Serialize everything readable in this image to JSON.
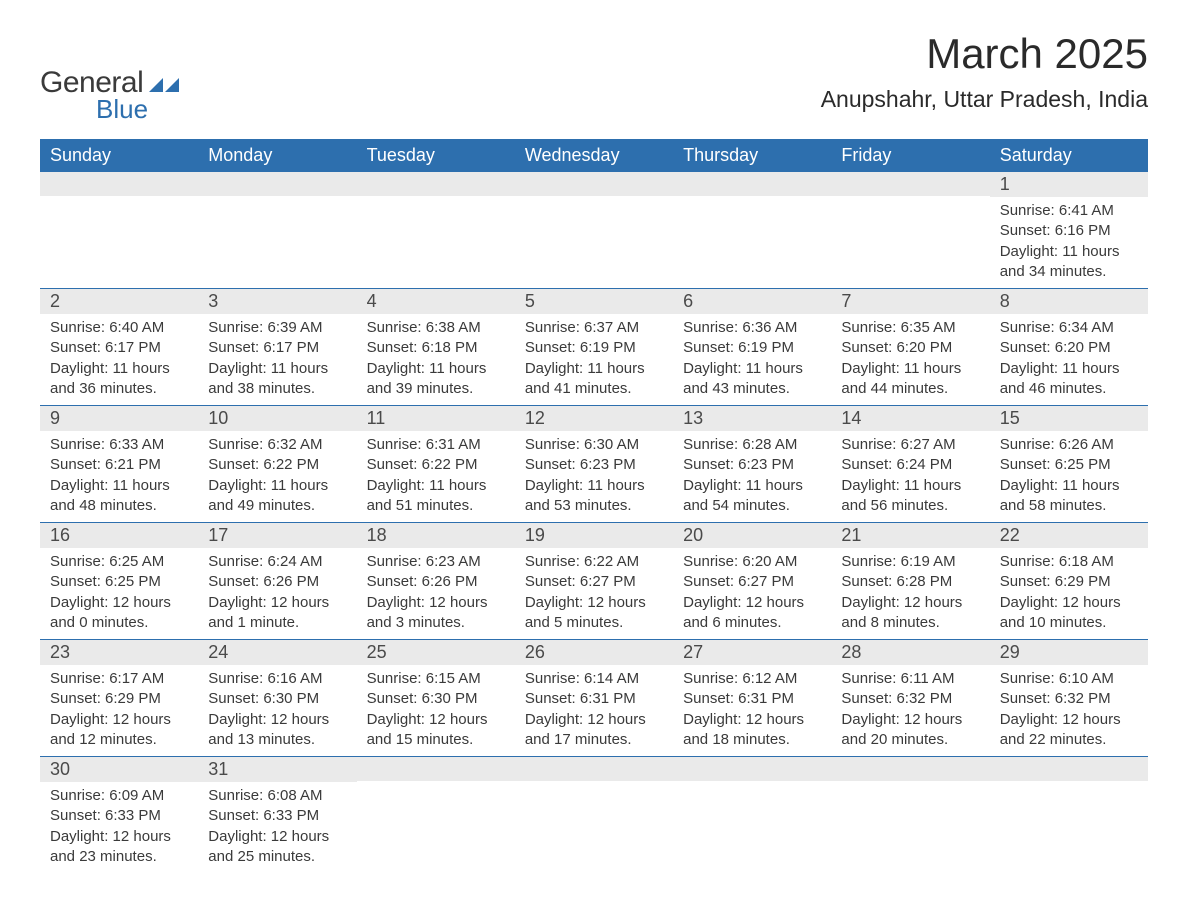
{
  "brand": {
    "name1": "General",
    "name2": "Blue",
    "color1": "#3a3a3a",
    "color2": "#2d6fae"
  },
  "title": "March 2025",
  "location": "Anupshahr, Uttar Pradesh, India",
  "weekdays": [
    "Sunday",
    "Monday",
    "Tuesday",
    "Wednesday",
    "Thursday",
    "Friday",
    "Saturday"
  ],
  "style": {
    "header_bg": "#2d6fae",
    "header_text": "#ffffff",
    "daynum_bg": "#eaeaea",
    "text_color": "#3a3a3a",
    "row_border": "#2d6fae",
    "title_fontsize": 42,
    "location_fontsize": 23,
    "weekday_fontsize": 18,
    "daynum_fontsize": 18,
    "detail_fontsize": 15
  },
  "weeks": [
    [
      {
        "empty": true
      },
      {
        "empty": true
      },
      {
        "empty": true
      },
      {
        "empty": true
      },
      {
        "empty": true
      },
      {
        "empty": true
      },
      {
        "day": "1",
        "sunrise": "Sunrise: 6:41 AM",
        "sunset": "Sunset: 6:16 PM",
        "daylight1": "Daylight: 11 hours",
        "daylight2": "and 34 minutes."
      }
    ],
    [
      {
        "day": "2",
        "sunrise": "Sunrise: 6:40 AM",
        "sunset": "Sunset: 6:17 PM",
        "daylight1": "Daylight: 11 hours",
        "daylight2": "and 36 minutes."
      },
      {
        "day": "3",
        "sunrise": "Sunrise: 6:39 AM",
        "sunset": "Sunset: 6:17 PM",
        "daylight1": "Daylight: 11 hours",
        "daylight2": "and 38 minutes."
      },
      {
        "day": "4",
        "sunrise": "Sunrise: 6:38 AM",
        "sunset": "Sunset: 6:18 PM",
        "daylight1": "Daylight: 11 hours",
        "daylight2": "and 39 minutes."
      },
      {
        "day": "5",
        "sunrise": "Sunrise: 6:37 AM",
        "sunset": "Sunset: 6:19 PM",
        "daylight1": "Daylight: 11 hours",
        "daylight2": "and 41 minutes."
      },
      {
        "day": "6",
        "sunrise": "Sunrise: 6:36 AM",
        "sunset": "Sunset: 6:19 PM",
        "daylight1": "Daylight: 11 hours",
        "daylight2": "and 43 minutes."
      },
      {
        "day": "7",
        "sunrise": "Sunrise: 6:35 AM",
        "sunset": "Sunset: 6:20 PM",
        "daylight1": "Daylight: 11 hours",
        "daylight2": "and 44 minutes."
      },
      {
        "day": "8",
        "sunrise": "Sunrise: 6:34 AM",
        "sunset": "Sunset: 6:20 PM",
        "daylight1": "Daylight: 11 hours",
        "daylight2": "and 46 minutes."
      }
    ],
    [
      {
        "day": "9",
        "sunrise": "Sunrise: 6:33 AM",
        "sunset": "Sunset: 6:21 PM",
        "daylight1": "Daylight: 11 hours",
        "daylight2": "and 48 minutes."
      },
      {
        "day": "10",
        "sunrise": "Sunrise: 6:32 AM",
        "sunset": "Sunset: 6:22 PM",
        "daylight1": "Daylight: 11 hours",
        "daylight2": "and 49 minutes."
      },
      {
        "day": "11",
        "sunrise": "Sunrise: 6:31 AM",
        "sunset": "Sunset: 6:22 PM",
        "daylight1": "Daylight: 11 hours",
        "daylight2": "and 51 minutes."
      },
      {
        "day": "12",
        "sunrise": "Sunrise: 6:30 AM",
        "sunset": "Sunset: 6:23 PM",
        "daylight1": "Daylight: 11 hours",
        "daylight2": "and 53 minutes."
      },
      {
        "day": "13",
        "sunrise": "Sunrise: 6:28 AM",
        "sunset": "Sunset: 6:23 PM",
        "daylight1": "Daylight: 11 hours",
        "daylight2": "and 54 minutes."
      },
      {
        "day": "14",
        "sunrise": "Sunrise: 6:27 AM",
        "sunset": "Sunset: 6:24 PM",
        "daylight1": "Daylight: 11 hours",
        "daylight2": "and 56 minutes."
      },
      {
        "day": "15",
        "sunrise": "Sunrise: 6:26 AM",
        "sunset": "Sunset: 6:25 PM",
        "daylight1": "Daylight: 11 hours",
        "daylight2": "and 58 minutes."
      }
    ],
    [
      {
        "day": "16",
        "sunrise": "Sunrise: 6:25 AM",
        "sunset": "Sunset: 6:25 PM",
        "daylight1": "Daylight: 12 hours",
        "daylight2": "and 0 minutes."
      },
      {
        "day": "17",
        "sunrise": "Sunrise: 6:24 AM",
        "sunset": "Sunset: 6:26 PM",
        "daylight1": "Daylight: 12 hours",
        "daylight2": "and 1 minute."
      },
      {
        "day": "18",
        "sunrise": "Sunrise: 6:23 AM",
        "sunset": "Sunset: 6:26 PM",
        "daylight1": "Daylight: 12 hours",
        "daylight2": "and 3 minutes."
      },
      {
        "day": "19",
        "sunrise": "Sunrise: 6:22 AM",
        "sunset": "Sunset: 6:27 PM",
        "daylight1": "Daylight: 12 hours",
        "daylight2": "and 5 minutes."
      },
      {
        "day": "20",
        "sunrise": "Sunrise: 6:20 AM",
        "sunset": "Sunset: 6:27 PM",
        "daylight1": "Daylight: 12 hours",
        "daylight2": "and 6 minutes."
      },
      {
        "day": "21",
        "sunrise": "Sunrise: 6:19 AM",
        "sunset": "Sunset: 6:28 PM",
        "daylight1": "Daylight: 12 hours",
        "daylight2": "and 8 minutes."
      },
      {
        "day": "22",
        "sunrise": "Sunrise: 6:18 AM",
        "sunset": "Sunset: 6:29 PM",
        "daylight1": "Daylight: 12 hours",
        "daylight2": "and 10 minutes."
      }
    ],
    [
      {
        "day": "23",
        "sunrise": "Sunrise: 6:17 AM",
        "sunset": "Sunset: 6:29 PM",
        "daylight1": "Daylight: 12 hours",
        "daylight2": "and 12 minutes."
      },
      {
        "day": "24",
        "sunrise": "Sunrise: 6:16 AM",
        "sunset": "Sunset: 6:30 PM",
        "daylight1": "Daylight: 12 hours",
        "daylight2": "and 13 minutes."
      },
      {
        "day": "25",
        "sunrise": "Sunrise: 6:15 AM",
        "sunset": "Sunset: 6:30 PM",
        "daylight1": "Daylight: 12 hours",
        "daylight2": "and 15 minutes."
      },
      {
        "day": "26",
        "sunrise": "Sunrise: 6:14 AM",
        "sunset": "Sunset: 6:31 PM",
        "daylight1": "Daylight: 12 hours",
        "daylight2": "and 17 minutes."
      },
      {
        "day": "27",
        "sunrise": "Sunrise: 6:12 AM",
        "sunset": "Sunset: 6:31 PM",
        "daylight1": "Daylight: 12 hours",
        "daylight2": "and 18 minutes."
      },
      {
        "day": "28",
        "sunrise": "Sunrise: 6:11 AM",
        "sunset": "Sunset: 6:32 PM",
        "daylight1": "Daylight: 12 hours",
        "daylight2": "and 20 minutes."
      },
      {
        "day": "29",
        "sunrise": "Sunrise: 6:10 AM",
        "sunset": "Sunset: 6:32 PM",
        "daylight1": "Daylight: 12 hours",
        "daylight2": "and 22 minutes."
      }
    ],
    [
      {
        "day": "30",
        "sunrise": "Sunrise: 6:09 AM",
        "sunset": "Sunset: 6:33 PM",
        "daylight1": "Daylight: 12 hours",
        "daylight2": "and 23 minutes."
      },
      {
        "day": "31",
        "sunrise": "Sunrise: 6:08 AM",
        "sunset": "Sunset: 6:33 PM",
        "daylight1": "Daylight: 12 hours",
        "daylight2": "and 25 minutes."
      },
      {
        "empty": true
      },
      {
        "empty": true
      },
      {
        "empty": true
      },
      {
        "empty": true
      },
      {
        "empty": true
      }
    ]
  ]
}
